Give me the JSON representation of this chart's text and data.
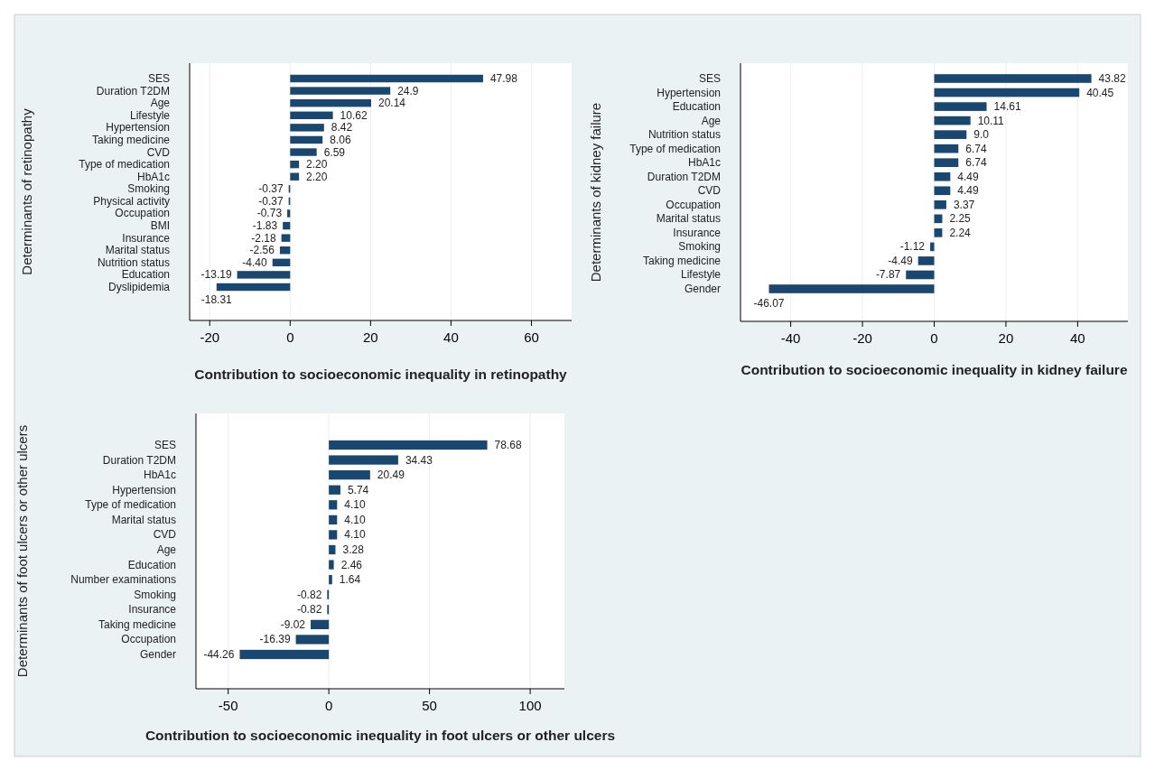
{
  "chart_data": [
    {
      "type": "bar",
      "orientation": "horizontal",
      "ylabel": "Determinants of retinopathy",
      "xlabel": "Contribution to socioeconomic inequality in retinopathy",
      "categories": [
        "SES",
        "Duration T2DM",
        "Age",
        "Lifestyle",
        "Hypertension",
        "Taking medicine",
        "CVD",
        "Type of medication",
        "HbA1c",
        "Smoking",
        "Physical activity",
        "Occupation",
        "BMI",
        "Insurance",
        "Marital status",
        "Nutrition status",
        "Education",
        "Dyslipidemia"
      ],
      "values": [
        47.98,
        24.9,
        20.14,
        10.62,
        8.42,
        8.06,
        6.59,
        2.2,
        2.2,
        -0.37,
        -0.37,
        -0.73,
        -1.83,
        -2.18,
        -2.56,
        -4.4,
        -13.19,
        -18.31
      ],
      "value_labels": [
        "47.98",
        "24.9",
        "20.14",
        "10.62",
        "8.42",
        "8.06",
        "6.59",
        "2.20",
        "2.20",
        "-0.37",
        "-0.37",
        "-0.73",
        "-1.83",
        "-2.18",
        "-2.56",
        "-4.40",
        "-13.19",
        "-18.31"
      ],
      "color": "#1a476f",
      "xlim": [
        -25,
        70
      ],
      "xticks": [
        -20,
        0,
        20,
        40,
        60
      ],
      "grid": "x"
    },
    {
      "type": "bar",
      "orientation": "horizontal",
      "ylabel": "Determinants of kidney failure",
      "xlabel": "Contribution to socioeconomic inequality in kidney failure",
      "categories": [
        "SES",
        "Hypertension",
        "Education",
        "Age",
        "Nutrition status",
        "Type of medication",
        "HbA1c",
        "Duration T2DM",
        "CVD",
        "Occupation",
        "Marital status",
        "Insurance",
        "Smoking",
        "Taking medicine",
        "Lifestyle",
        "Gender"
      ],
      "values": [
        43.82,
        40.45,
        14.61,
        10.11,
        9.0,
        6.74,
        6.74,
        4.49,
        4.49,
        3.37,
        2.25,
        2.24,
        -1.12,
        -4.49,
        -7.87,
        -46.07
      ],
      "value_labels": [
        "43.82",
        "40.45",
        "14.61",
        "10.11",
        "9.0",
        "6.74",
        "6.74",
        "4.49",
        "4.49",
        "3.37",
        "2.25",
        "2.24",
        "-1.12",
        "-4.49",
        "-7.87",
        "-46.07"
      ],
      "color": "#1a476f",
      "xlim": [
        -54,
        54
      ],
      "xticks": [
        -40,
        -20,
        0,
        20,
        40
      ],
      "grid": "x"
    },
    {
      "type": "bar",
      "orientation": "horizontal",
      "ylabel": "Determinants of foot ulcers or other ulcers",
      "xlabel": "Contribution to socioeconomic inequality in foot ulcers or other ulcers",
      "categories": [
        "SES",
        "Duration T2DM",
        "HbA1c",
        "Hypertension",
        "Type of medication",
        "Marital status",
        "CVD",
        "Age",
        "Education",
        "Number examinations",
        "Smoking",
        "Insurance",
        "Taking medicine",
        "Occupation",
        "Gender"
      ],
      "values": [
        78.68,
        34.43,
        20.49,
        5.74,
        4.1,
        4.1,
        4.1,
        3.28,
        2.46,
        1.64,
        -0.82,
        -0.82,
        -9.02,
        -16.39,
        -44.26
      ],
      "value_labels": [
        "78.68",
        "34.43",
        "20.49",
        "5.74",
        "4.10",
        "4.10",
        "4.10",
        "3.28",
        "2.46",
        "1.64",
        "-0.82",
        "-0.82",
        "-9.02",
        "-16.39",
        "-44.26"
      ],
      "color": "#1a476f",
      "xlim": [
        -66,
        117
      ],
      "xticks": [
        -50,
        0,
        50,
        100
      ],
      "grid": "x"
    }
  ]
}
